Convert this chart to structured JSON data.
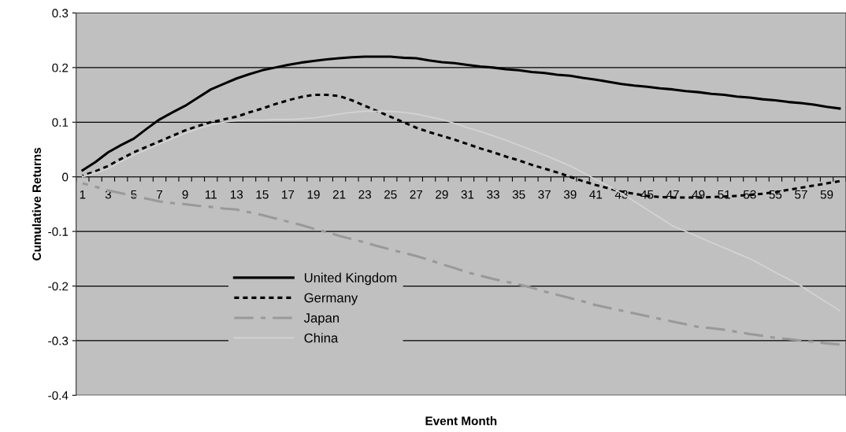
{
  "chart_data": {
    "type": "line",
    "xlabel": "Event Month",
    "ylabel": "Cumulative Returns",
    "categories": [
      "1",
      null,
      "3",
      null,
      "5",
      null,
      "7",
      null,
      "9",
      null,
      "11",
      null,
      "13",
      null,
      "15",
      null,
      "17",
      null,
      "19",
      null,
      "21",
      null,
      "23",
      null,
      "25",
      null,
      "27",
      null,
      "29",
      null,
      "31",
      null,
      "33",
      null,
      "35",
      null,
      "37",
      null,
      "39",
      null,
      "41",
      null,
      "43",
      null,
      "45",
      null,
      "47",
      null,
      "49",
      null,
      "51",
      null,
      "53",
      null,
      "55",
      null,
      "57",
      null,
      "59",
      null
    ],
    "series": [
      {
        "name": "United Kingdom",
        "color": "#000000",
        "line_style": "solid",
        "values": [
          0.012,
          0.027,
          0.045,
          0.058,
          0.07,
          0.088,
          0.105,
          0.118,
          0.13,
          0.145,
          0.16,
          0.17,
          0.18,
          0.188,
          0.195,
          0.2,
          0.205,
          0.209,
          0.212,
          0.215,
          0.217,
          0.219,
          0.22,
          0.22,
          0.22,
          0.218,
          0.217,
          0.213,
          0.21,
          0.208,
          0.205,
          0.202,
          0.2,
          0.197,
          0.195,
          0.192,
          0.19,
          0.187,
          0.185,
          0.181,
          0.178,
          0.174,
          0.17,
          0.167,
          0.165,
          0.162,
          0.16,
          0.157,
          0.155,
          0.152,
          0.15,
          0.147,
          0.145,
          0.142,
          0.14,
          0.137,
          0.135,
          0.132,
          0.128,
          0.125
        ]
      },
      {
        "name": "Germany",
        "color": "#000000",
        "line_style": "dotted",
        "values": [
          0.002,
          0.01,
          0.02,
          0.033,
          0.045,
          0.055,
          0.065,
          0.075,
          0.085,
          0.093,
          0.1,
          0.105,
          0.11,
          0.118,
          0.125,
          0.133,
          0.14,
          0.146,
          0.15,
          0.15,
          0.148,
          0.14,
          0.13,
          0.12,
          0.11,
          0.1,
          0.09,
          0.082,
          0.075,
          0.068,
          0.06,
          0.052,
          0.045,
          0.037,
          0.03,
          0.022,
          0.015,
          0.008,
          0.0,
          -0.008,
          -0.015,
          -0.021,
          -0.027,
          -0.031,
          -0.035,
          -0.037,
          -0.038,
          -0.038,
          -0.038,
          -0.037,
          -0.036,
          -0.035,
          -0.033,
          -0.031,
          -0.028,
          -0.024,
          -0.02,
          -0.016,
          -0.012,
          -0.008
        ]
      },
      {
        "name": "Japan",
        "color": "#999999",
        "line_style": "dashed",
        "values": [
          -0.012,
          -0.018,
          -0.025,
          -0.03,
          -0.035,
          -0.04,
          -0.045,
          -0.048,
          -0.05,
          -0.053,
          -0.055,
          -0.058,
          -0.06,
          -0.065,
          -0.07,
          -0.076,
          -0.082,
          -0.088,
          -0.095,
          -0.101,
          -0.108,
          -0.114,
          -0.12,
          -0.127,
          -0.133,
          -0.139,
          -0.145,
          -0.152,
          -0.16,
          -0.167,
          -0.175,
          -0.181,
          -0.187,
          -0.192,
          -0.197,
          -0.203,
          -0.21,
          -0.216,
          -0.222,
          -0.228,
          -0.235,
          -0.24,
          -0.245,
          -0.25,
          -0.255,
          -0.26,
          -0.265,
          -0.27,
          -0.275,
          -0.277,
          -0.28,
          -0.284,
          -0.288,
          -0.291,
          -0.295,
          -0.297,
          -0.3,
          -0.302,
          -0.305,
          -0.307
        ]
      },
      {
        "name": "China",
        "color": "#d4d4d4",
        "line_style": "solid",
        "values": [
          0.0,
          0.007,
          0.015,
          0.028,
          0.04,
          0.05,
          0.06,
          0.07,
          0.08,
          0.088,
          0.095,
          0.1,
          0.103,
          0.104,
          0.104,
          0.105,
          0.105,
          0.106,
          0.108,
          0.111,
          0.115,
          0.118,
          0.12,
          0.12,
          0.12,
          0.118,
          0.115,
          0.11,
          0.105,
          0.098,
          0.09,
          0.083,
          0.075,
          0.067,
          0.058,
          0.049,
          0.04,
          0.03,
          0.02,
          0.008,
          -0.005,
          -0.017,
          -0.03,
          -0.045,
          -0.06,
          -0.075,
          -0.09,
          -0.1,
          -0.11,
          -0.12,
          -0.13,
          -0.14,
          -0.15,
          -0.162,
          -0.175,
          -0.187,
          -0.2,
          -0.215,
          -0.23,
          -0.245
        ]
      }
    ],
    "ylim": [
      -0.4,
      0.3
    ],
    "yticks": [
      -0.4,
      -0.3,
      -0.2,
      -0.1,
      0,
      0.1,
      0.2,
      0.3
    ],
    "grid": "y",
    "legend": "bottom left",
    "marker": "none"
  }
}
